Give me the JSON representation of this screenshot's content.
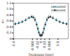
{
  "chart_data": {
    "type": "line",
    "xlabel": "Thickness [mm]",
    "ylabel": "a₁₁",
    "xlim": [
      -1.6,
      1.6
    ],
    "ylim": [
      0.0,
      1.2
    ],
    "xticks": [
      -1.6,
      {
        "value": -0.5,
        "label": "-0.500"
      },
      -0.22,
      0,
      0.22,
      {
        "value": 0.5,
        "label": "0.500"
      },
      {
        "value": 1.0,
        "label": "1.0"
      }
    ],
    "yticks": [
      0,
      0.2,
      0.4,
      0.6,
      0.8,
      {
        "value": 1.0,
        "label": "1.0"
      },
      1.2
    ],
    "grid": false,
    "legend": "upper right",
    "series": [
      {
        "name": "calculated",
        "type": "line",
        "color": "#44CCEE",
        "line_style": "solid",
        "x": [
          -1.6,
          -1.45,
          -1.3,
          -1.1,
          -0.9,
          -0.7,
          -0.55,
          -0.45,
          -0.38,
          -0.3,
          -0.24,
          -0.18,
          -0.12,
          -0.06,
          0.0,
          0.06,
          0.12,
          0.18,
          0.24,
          0.3,
          0.38,
          0.45,
          0.55,
          0.7,
          0.9,
          1.1,
          1.3,
          1.45,
          1.6
        ],
        "values": [
          0.5,
          0.51,
          0.53,
          0.57,
          0.63,
          0.7,
          0.74,
          0.73,
          0.68,
          0.58,
          0.44,
          0.3,
          0.18,
          0.11,
          0.09,
          0.11,
          0.18,
          0.3,
          0.44,
          0.58,
          0.68,
          0.73,
          0.74,
          0.7,
          0.63,
          0.57,
          0.53,
          0.51,
          0.5
        ]
      },
      {
        "name": "measured",
        "type": "scatter",
        "color": "#111111",
        "marker": "square",
        "x": [
          -1.5,
          -1.3,
          -1.1,
          -0.9,
          -0.7,
          -0.55,
          -0.45,
          -0.35,
          -0.25,
          -0.18,
          -0.12,
          -0.06,
          0.0,
          0.06,
          0.12,
          0.18,
          0.25,
          0.35,
          0.45,
          0.55,
          0.7,
          0.9,
          1.1,
          1.3,
          1.5
        ],
        "values": [
          0.5,
          0.53,
          0.57,
          0.63,
          0.7,
          0.74,
          0.72,
          0.64,
          0.48,
          0.34,
          0.21,
          0.13,
          0.1,
          0.13,
          0.21,
          0.34,
          0.48,
          0.64,
          0.72,
          0.74,
          0.7,
          0.63,
          0.57,
          0.53,
          0.5
        ],
        "yerr": [
          0.05,
          0.05,
          0.05,
          0.05,
          0.05,
          0.05,
          0.06,
          0.07,
          0.07,
          0.07,
          0.06,
          0.06,
          0.05,
          0.06,
          0.06,
          0.07,
          0.07,
          0.07,
          0.06,
          0.05,
          0.05,
          0.05,
          0.05,
          0.05,
          0.05
        ]
      }
    ]
  }
}
